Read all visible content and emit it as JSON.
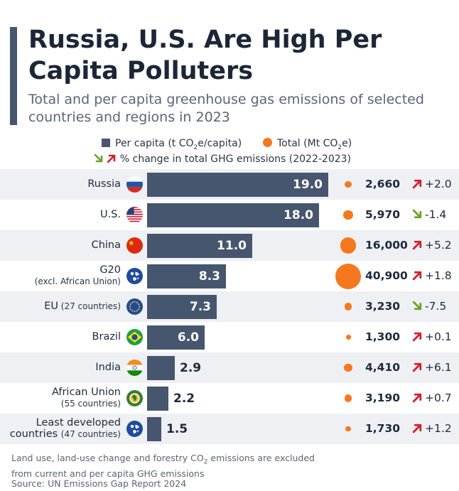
{
  "title": "Russia, U.S. Are High Per Capita Polluters",
  "subtitle": "Total and per capita greenhouse gas emissions of selected countries and regions in 2023",
  "legend": {
    "per_capita": "Per capita (t CO",
    "per_capita_sub": "2",
    "per_capita_end": "e/capita)",
    "total": "Total (Mt CO",
    "total_sub": "2",
    "total_end": "e)",
    "change": "% change in total GHG emissions (2022-2023)"
  },
  "colors": {
    "bar": "#46566e",
    "dot": "#f5781e",
    "up_arrow": "#d0202f",
    "down_arrow": "#6aa227",
    "band": "#eef0f4"
  },
  "chart_data": {
    "type": "bar",
    "orientation": "horizontal",
    "categories": [
      "Russia",
      "U.S.",
      "China",
      "G20 (excl. African Union)",
      "EU (27 countries)",
      "Brazil",
      "India",
      "African Union (55 countries)",
      "Least developed countries (47 countries)"
    ],
    "series": [
      {
        "name": "Per capita (t CO2e/capita)",
        "values": [
          19.0,
          18.0,
          11.0,
          8.3,
          7.3,
          6.0,
          2.9,
          2.2,
          1.5
        ]
      },
      {
        "name": "Total (Mt CO2e)",
        "values": [
          2660,
          5970,
          16000,
          40900,
          3230,
          1300,
          4410,
          3190,
          1730
        ]
      },
      {
        "name": "% change in total GHG emissions (2022-2023)",
        "values": [
          2.0,
          -1.4,
          5.2,
          1.8,
          -7.5,
          0.1,
          6.1,
          0.7,
          1.2
        ]
      }
    ],
    "rows": [
      {
        "name": "Russia",
        "name_note": "",
        "flag": "russia-flag",
        "per_capita": 19.0,
        "per_capita_label": "19.0",
        "total": 2660,
        "total_label": "2,660",
        "change": 2.0,
        "change_label": "+2.0",
        "direction": "up"
      },
      {
        "name": "U.S.",
        "name_note": "",
        "flag": "us-flag",
        "per_capita": 18.0,
        "per_capita_label": "18.0",
        "total": 5970,
        "total_label": "5,970",
        "change": -1.4,
        "change_label": "-1.4",
        "direction": "down"
      },
      {
        "name": "China",
        "name_note": "",
        "flag": "china-flag",
        "per_capita": 11.0,
        "per_capita_label": "11.0",
        "total": 16000,
        "total_label": "16,000",
        "change": 5.2,
        "change_label": "+5.2",
        "direction": "up"
      },
      {
        "name": "G20",
        "name_note": "(excl. African Union)",
        "note_block": true,
        "flag": "globe-icon",
        "per_capita": 8.3,
        "per_capita_label": "8.3",
        "total": 40900,
        "total_label": "40,900",
        "change": 1.8,
        "change_label": "+1.8",
        "direction": "up"
      },
      {
        "name": "EU",
        "name_note": "(27 countries)",
        "note_block": false,
        "flag": "eu-flag",
        "per_capita": 7.3,
        "per_capita_label": "7.3",
        "total": 3230,
        "total_label": "3,230",
        "change": -7.5,
        "change_label": "-7.5",
        "direction": "down"
      },
      {
        "name": "Brazil",
        "name_note": "",
        "flag": "brazil-flag",
        "per_capita": 6.0,
        "per_capita_label": "6.0",
        "total": 1300,
        "total_label": "1,300",
        "change": 0.1,
        "change_label": "+0.1",
        "direction": "up"
      },
      {
        "name": "India",
        "name_note": "",
        "flag": "india-flag",
        "per_capita": 2.9,
        "per_capita_label": "2.9",
        "total": 4410,
        "total_label": "4,410",
        "change": 6.1,
        "change_label": "+6.1",
        "direction": "up"
      },
      {
        "name": "African Union",
        "name_note": "(55 countries)",
        "note_block": true,
        "flag": "african-union-icon",
        "per_capita": 2.2,
        "per_capita_label": "2.2",
        "total": 3190,
        "total_label": "3,190",
        "change": 0.7,
        "change_label": "+0.7",
        "direction": "up"
      },
      {
        "name": "Least developed",
        "name_line2": "countries",
        "name_note": "(47 countries)",
        "flag": "globe-icon",
        "per_capita": 1.5,
        "per_capita_label": "1.5",
        "total": 1730,
        "total_label": "1,730",
        "change": 1.2,
        "change_label": "+1.2",
        "direction": "up"
      }
    ],
    "per_capita_max": 19.0,
    "total_max": 40900
  },
  "footer": {
    "note_line1_a": "Land use, land-use change and forestry CO",
    "note_line1_sub": "2",
    "note_line1_b": " emissions are excluded",
    "note_line2": "from current and per capita GHG emissions",
    "source": "Source: UN Emissions Gap Report 2024"
  }
}
